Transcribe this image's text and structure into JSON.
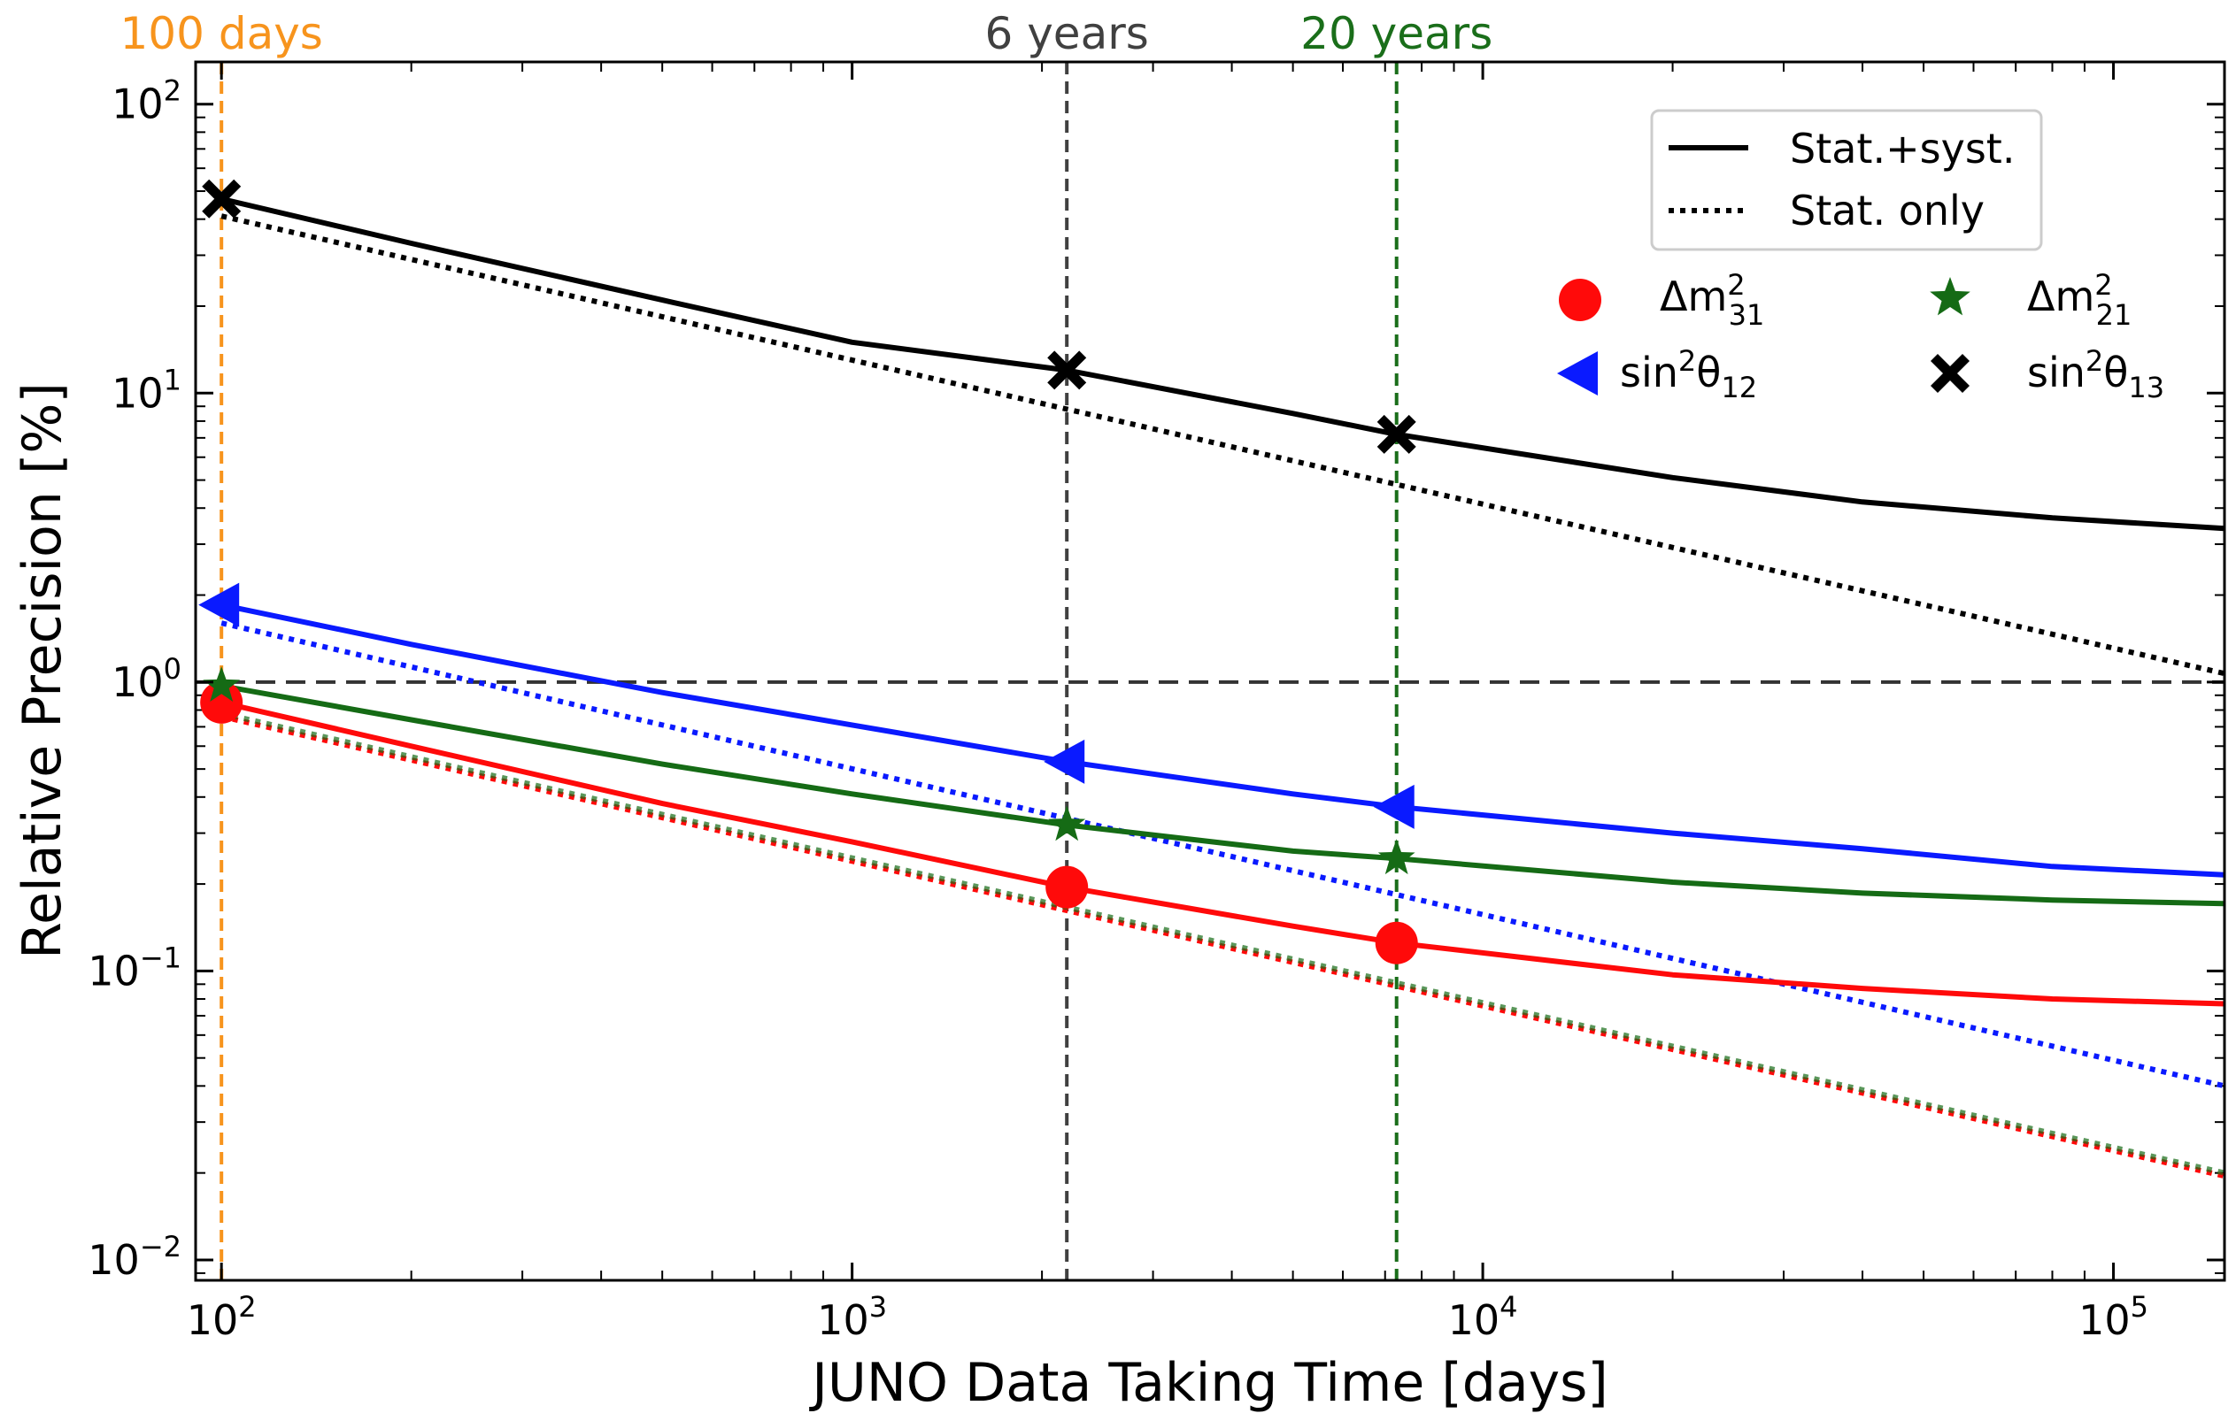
{
  "chart_data": {
    "type": "line",
    "xscale": "log",
    "yscale": "log",
    "xlabel": "JUNO Data Taking Time [days]",
    "ylabel": "Relative Precision [%]",
    "xlim": [
      91,
      150000
    ],
    "ylim": [
      0.0085,
      140
    ],
    "xticks": [
      {
        "value": 100,
        "base": "10",
        "exp": "2"
      },
      {
        "value": 1000,
        "base": "10",
        "exp": "3"
      },
      {
        "value": 10000,
        "base": "10",
        "exp": "4"
      },
      {
        "value": 100000,
        "base": "10",
        "exp": "5"
      }
    ],
    "yticks": [
      {
        "value": 0.01,
        "base": "10",
        "exp": "−2"
      },
      {
        "value": 0.1,
        "base": "10",
        "exp": "−1"
      },
      {
        "value": 1,
        "base": "10",
        "exp": "0"
      },
      {
        "value": 10,
        "base": "10",
        "exp": "1"
      },
      {
        "value": 100,
        "base": "10",
        "exp": "2"
      }
    ],
    "reference_line": {
      "y": 1,
      "color": "#333333",
      "style": "dashed"
    },
    "vlines": [
      {
        "x": 100,
        "label": "100 days",
        "color": "#f7941d"
      },
      {
        "x": 2190,
        "label": "6 years",
        "color": "#404040"
      },
      {
        "x": 7300,
        "label": "20 years",
        "color": "#1a6e1a"
      }
    ],
    "series": [
      {
        "name": "sin2theta13",
        "label_base": "sin",
        "label_sup": "2",
        "label_greek": "θ",
        "label_sub": "13",
        "color": "#000000",
        "marker": "X",
        "stat_syst": {
          "x": [
            100,
            200,
            500,
            1000,
            2190,
            5000,
            7300,
            20000,
            40000,
            80000,
            150000
          ],
          "y": [
            47,
            33,
            21,
            15,
            12,
            8.5,
            7.2,
            5.1,
            4.2,
            3.7,
            3.4
          ]
        },
        "stat_only": {
          "x": [
            100,
            150000
          ],
          "y": [
            41,
            1.07
          ]
        },
        "markers": {
          "x": [
            100,
            2190,
            7300
          ],
          "y": [
            47,
            12,
            7.2
          ]
        }
      },
      {
        "name": "sin2theta12",
        "label_base": "sin",
        "label_sup": "2",
        "label_greek": "θ",
        "label_sub": "12",
        "color": "#0a1aff",
        "marker": "triangle-left",
        "stat_syst": {
          "x": [
            100,
            200,
            500,
            1000,
            2190,
            5000,
            7300,
            20000,
            40000,
            80000,
            150000
          ],
          "y": [
            1.85,
            1.35,
            0.92,
            0.71,
            0.53,
            0.41,
            0.37,
            0.3,
            0.265,
            0.23,
            0.215
          ]
        },
        "stat_only": {
          "x": [
            100,
            150000
          ],
          "y": [
            1.6,
            0.04
          ]
        },
        "markers": {
          "x": [
            100,
            2190,
            7300
          ],
          "y": [
            1.85,
            0.53,
            0.37
          ]
        }
      },
      {
        "name": "dm21",
        "label_base": "Δm",
        "label_sup": "2",
        "label_greek": "",
        "label_sub": "21",
        "color": "#156b15",
        "marker": "star",
        "stat_syst": {
          "x": [
            100,
            200,
            500,
            1000,
            2190,
            5000,
            7300,
            20000,
            40000,
            80000,
            150000
          ],
          "y": [
            0.97,
            0.74,
            0.52,
            0.41,
            0.32,
            0.26,
            0.245,
            0.203,
            0.186,
            0.176,
            0.171
          ]
        },
        "stat_only": {
          "x": [
            100,
            150000
          ],
          "y": [
            0.78,
            0.02
          ]
        },
        "markers": {
          "x": [
            100,
            2190,
            7300
          ],
          "y": [
            0.97,
            0.32,
            0.245
          ]
        }
      },
      {
        "name": "dm31",
        "label_base": "Δm",
        "label_sup": "2",
        "label_greek": "",
        "label_sub": "31",
        "color": "#ff0a0a",
        "marker": "circle",
        "stat_syst": {
          "x": [
            100,
            200,
            500,
            1000,
            2190,
            5000,
            7300,
            20000,
            40000,
            80000,
            150000
          ],
          "y": [
            0.85,
            0.6,
            0.38,
            0.28,
            0.195,
            0.143,
            0.125,
            0.097,
            0.087,
            0.08,
            0.077
          ]
        },
        "stat_only": {
          "x": [
            100,
            150000
          ],
          "y": [
            0.76,
            0.0195
          ]
        },
        "markers": {
          "x": [
            100,
            2190,
            7300
          ],
          "y": [
            0.85,
            0.195,
            0.125
          ]
        }
      }
    ],
    "legend_lines": [
      {
        "label": "Stat.+syst.",
        "style": "solid"
      },
      {
        "label": "Stat. only",
        "style": "dotted"
      }
    ],
    "legend_placement": "top-right"
  }
}
